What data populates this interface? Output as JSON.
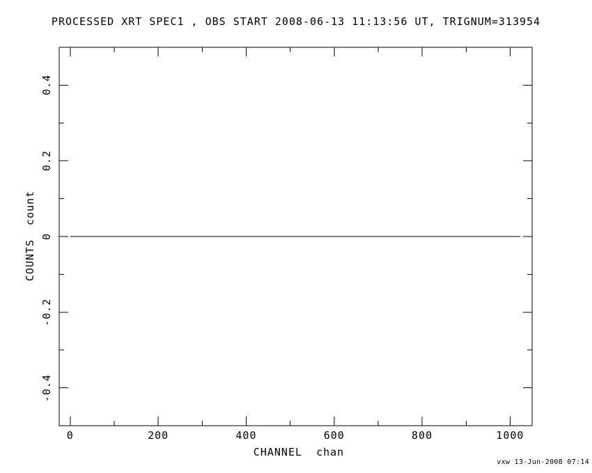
{
  "colors": {
    "background": "#ffffff",
    "foreground": "#000000"
  },
  "chart_data": {
    "type": "line",
    "title": "PROCESSED XRT SPEC1 , OBS START 2008-06-13 11:13:56 UT, TRIGNUM=313954",
    "xlabel": "CHANNEL  chan",
    "ylabel": "COUNTS  count",
    "annotation": "vxw 13-Jun-2008 07:14",
    "xlim": [
      -25,
      1050
    ],
    "ylim": [
      -0.5,
      0.5
    ],
    "grid": false,
    "legend": null,
    "x_major_ticks": [
      {
        "value": 0,
        "label": "0"
      },
      {
        "value": 200,
        "label": "200"
      },
      {
        "value": 400,
        "label": "400"
      },
      {
        "value": 600,
        "label": "600"
      },
      {
        "value": 800,
        "label": "800"
      },
      {
        "value": 1000,
        "label": "1000"
      }
    ],
    "x_minor_ticks": [
      100,
      300,
      500,
      700,
      900
    ],
    "y_major_ticks": [
      {
        "value": 0.4,
        "label": "0.4"
      },
      {
        "value": 0.2,
        "label": "0.2"
      },
      {
        "value": 0,
        "label": "0"
      },
      {
        "value": -0.2,
        "label": "-0.2"
      },
      {
        "value": -0.4,
        "label": "-0.4"
      }
    ],
    "y_minor_ticks": [
      0.3,
      0.1,
      -0.1,
      -0.3
    ],
    "series": [
      {
        "name": "spectrum-counts",
        "x": [
          0,
          1023
        ],
        "y": [
          0,
          0
        ]
      }
    ]
  }
}
